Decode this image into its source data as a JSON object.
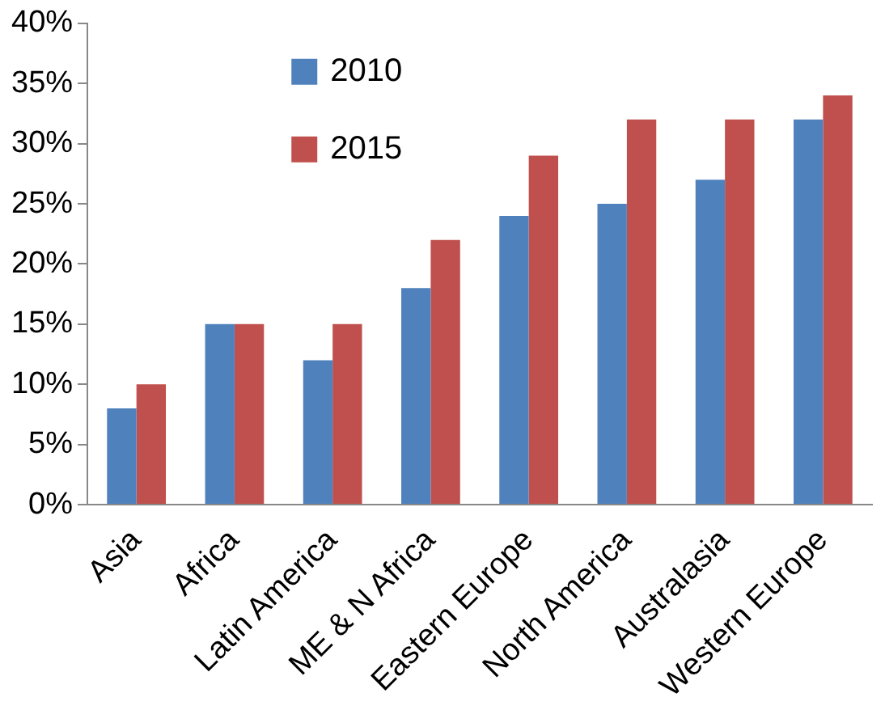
{
  "chart_data": {
    "type": "bar",
    "categories": [
      "Asia",
      "Africa",
      "Latin America",
      "ME & N Africa",
      "Eastern Europe",
      "North America",
      "Australasia",
      "Western Europe"
    ],
    "series": [
      {
        "name": "2010",
        "color": "#4f81bd",
        "values": [
          8,
          15,
          12,
          18,
          24,
          25,
          27,
          32
        ]
      },
      {
        "name": "2015",
        "color": "#c0504d",
        "values": [
          10,
          15,
          15,
          22,
          29,
          32,
          32,
          34
        ]
      }
    ],
    "ylim": [
      0,
      40
    ],
    "yticks": [
      {
        "value": 0,
        "label": "0%"
      },
      {
        "value": 5,
        "label": "5%"
      },
      {
        "value": 10,
        "label": "10%"
      },
      {
        "value": 15,
        "label": "15%"
      },
      {
        "value": 20,
        "label": "20%"
      },
      {
        "value": 25,
        "label": "25%"
      },
      {
        "value": 30,
        "label": "30%"
      },
      {
        "value": 35,
        "label": "35%"
      },
      {
        "value": 40,
        "label": "40%"
      }
    ],
    "grid": false,
    "legend": "top left"
  }
}
